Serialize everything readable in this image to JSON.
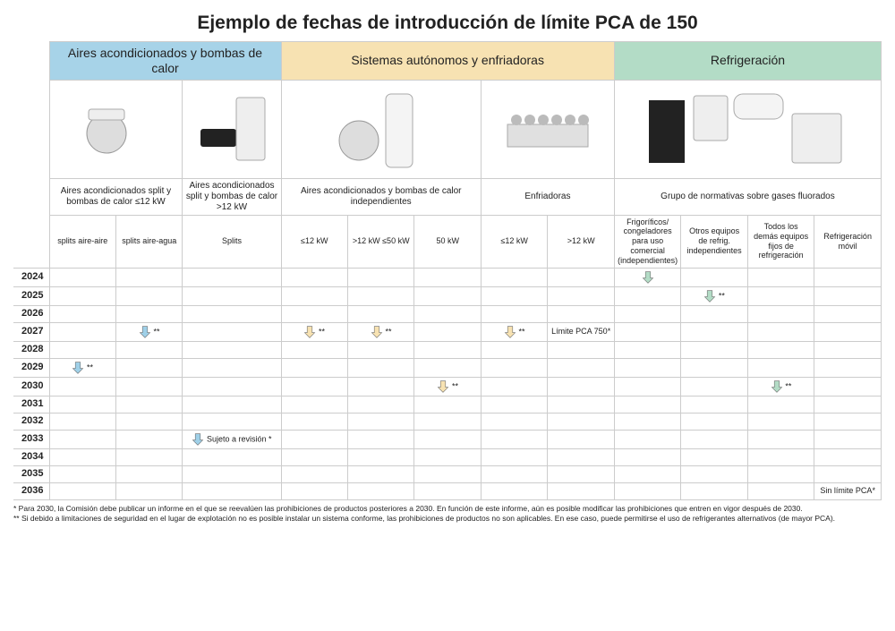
{
  "title": "Ejemplo de fechas de introducción de límite PCA de 150",
  "colors": {
    "section_ac": "#a7d3e8",
    "section_auto": "#f7e2b2",
    "section_refrig": "#b3dcc6",
    "arrow_blue": "#9fd0e8",
    "arrow_cream": "#f7e2b2",
    "arrow_green": "#b3dcc6",
    "grid": "#cccccc",
    "text": "#222222"
  },
  "sections": {
    "ac": "Aires acondicionados y bombas de calor",
    "auto": "Sistemas autónomos y enfriadoras",
    "refrig": "Refrigeración"
  },
  "subheaders": {
    "ac1": "Aires acondicionados split y bombas de calor ≤12 kW",
    "ac2": "Aires acondicionados split y bombas de calor >12 kW",
    "auto1": "Aires acondicionados y bombas de calor independientes",
    "auto2": "Enfriadoras",
    "refrig": "Grupo de normativas sobre gases fluorados"
  },
  "cols": {
    "c1": "splits aire-aire",
    "c2": "splits aire-agua",
    "c3": "Splits",
    "c4": "≤12 kW",
    "c5": ">12 kW ≤50 kW",
    "c6": "50 kW",
    "c7": "≤12 kW",
    "c8": ">12 kW",
    "c9": "Frigoríficos/ congeladores para uso comercial (independientes)",
    "c10": "Otros equipos de refrig. independientes",
    "c11": "Todos los demás equipos fijos de refrigeración",
    "c12": "Refrigeración móvil"
  },
  "years": [
    "2024",
    "2025",
    "2026",
    "2027",
    "2028",
    "2029",
    "2030",
    "2031",
    "2032",
    "2033",
    "2034",
    "2035",
    "2036"
  ],
  "bold_year": "2030",
  "cells": {
    "2024": {
      "c9": {
        "arrow": "green"
      }
    },
    "2025": {
      "c10": {
        "arrow": "green",
        "note": "**"
      }
    },
    "2027": {
      "c2": {
        "arrow": "blue",
        "note": "**"
      },
      "c4": {
        "arrow": "cream",
        "note": "**"
      },
      "c5": {
        "arrow": "cream",
        "note": "**"
      },
      "c7": {
        "arrow": "cream",
        "note": "**"
      },
      "c8": {
        "text": "Límite PCA 750*"
      }
    },
    "2029": {
      "c1": {
        "arrow": "blue",
        "note": "**"
      }
    },
    "2030": {
      "c6": {
        "arrow": "cream",
        "note": "**"
      },
      "c11": {
        "arrow": "green",
        "note": "**"
      }
    },
    "2033": {
      "c3": {
        "arrow": "blue",
        "note": "Sujeto a revisión *"
      }
    },
    "2036": {
      "c12": {
        "text": "Sin límite PCA*"
      }
    }
  },
  "footnotes": [
    "* Para 2030, la Comisión debe publicar un informe en el que se reevalúen las prohibiciones de productos posteriores a 2030. En función de este informe, aún es posible modificar las prohibiciones que entren en vigor después de 2030.",
    "** Si debido a limitaciones de seguridad en el lugar de explotación no es posible instalar un sistema conforme, las prohibiciones de productos no son aplicables. En ese caso, puede permitirse el uso de refrigerantes alternativos (de mayor PCA)."
  ]
}
